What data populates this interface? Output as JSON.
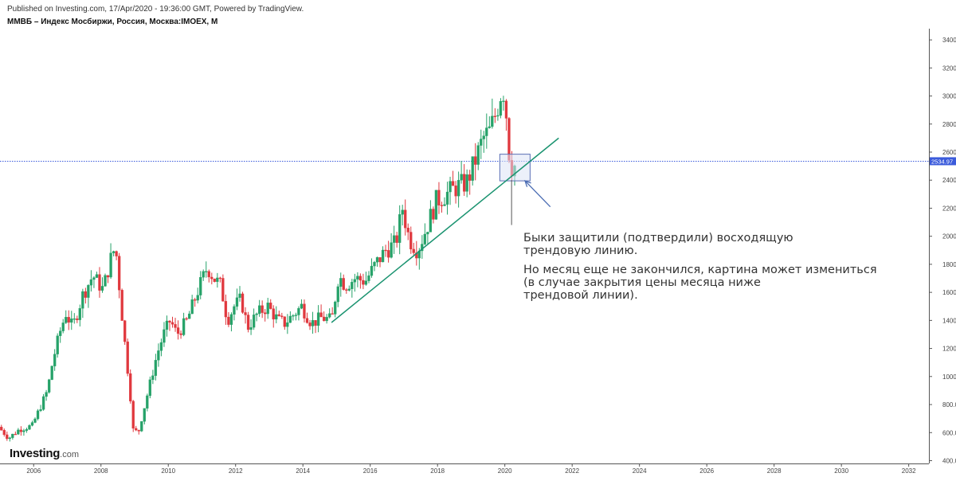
{
  "header": {
    "published": "Published on Investing.com, 17/Apr/2020 - 19:36:00 GMT, Powered by TradingView.",
    "title": "ММВБ – Индекс Мосбиржи, Россия, Москва:IMOEX, M"
  },
  "annotation": {
    "line1": "Быки защитили (подтвердили) восходящую",
    "line2": "трендовую линию.",
    "line3": "Но месяц еще не закончился, картина может измениться",
    "line4": "(в случае закрытия цены месяца ниже",
    "line5": "трендовой линии)."
  },
  "logo": {
    "brand": "Investing",
    "suffix": ".com"
  },
  "colors": {
    "up": "#26a269",
    "down": "#e0383e",
    "trend": "#1a9370",
    "price_line": "#3b5bdb",
    "box_fill": "#dce4f5",
    "box_border": "#5a6fb5"
  },
  "chart_data": {
    "type": "candlestick",
    "title": "ММВБ – Индекс Мосбиржи, Россия, Москва:IMOEX, M",
    "interval": "monthly",
    "x_ticks": [
      "2006",
      "2008",
      "2010",
      "2012",
      "2014",
      "2016",
      "2018",
      "2020",
      "2022",
      "2024",
      "2026",
      "2028",
      "2030",
      "2032"
    ],
    "y_ticks": [
      "400.00",
      "600.00",
      "800.00",
      "1000.00",
      "1200.00",
      "1400.00",
      "1600.00",
      "1800.00",
      "2000.00",
      "2200.00",
      "2400.00",
      "2600.00",
      "2800.00",
      "3000.00",
      "3200.00",
      "3400.00"
    ],
    "ylim": [
      380,
      3480
    ],
    "xlim": [
      2005.0,
      2032.6
    ],
    "current_price": "2534.97",
    "current_value": 2534.97,
    "close_path": [
      [
        2005.0,
        640
      ],
      [
        2005.3,
        560
      ],
      [
        2005.6,
        620
      ],
      [
        2006.0,
        650
      ],
      [
        2006.2,
        760
      ],
      [
        2006.45,
        900
      ],
      [
        2006.6,
        1100
      ],
      [
        2006.8,
        1300
      ],
      [
        2007.0,
        1450
      ],
      [
        2007.2,
        1350
      ],
      [
        2007.5,
        1580
      ],
      [
        2007.8,
        1720
      ],
      [
        2008.1,
        1620
      ],
      [
        2008.4,
        1900
      ],
      [
        2008.5,
        1860
      ],
      [
        2008.7,
        1350
      ],
      [
        2008.9,
        900
      ],
      [
        2009.0,
        620
      ],
      [
        2009.15,
        600
      ],
      [
        2009.3,
        750
      ],
      [
        2009.5,
        950
      ],
      [
        2009.7,
        1150
      ],
      [
        2009.9,
        1300
      ],
      [
        2010.1,
        1400
      ],
      [
        2010.3,
        1300
      ],
      [
        2010.6,
        1400
      ],
      [
        2010.9,
        1600
      ],
      [
        2011.2,
        1780
      ],
      [
        2011.4,
        1700
      ],
      [
        2011.6,
        1650
      ],
      [
        2011.8,
        1400
      ],
      [
        2012.0,
        1500
      ],
      [
        2012.2,
        1550
      ],
      [
        2012.4,
        1350
      ],
      [
        2012.7,
        1450
      ],
      [
        2013.0,
        1500
      ],
      [
        2013.3,
        1400
      ],
      [
        2013.5,
        1380
      ],
      [
        2013.8,
        1450
      ],
      [
        2014.0,
        1500
      ],
      [
        2014.3,
        1380
      ],
      [
        2014.6,
        1420
      ],
      [
        2014.9,
        1400
      ],
      [
        2015.1,
        1720
      ],
      [
        2015.3,
        1650
      ],
      [
        2015.6,
        1700
      ],
      [
        2015.9,
        1680
      ],
      [
        2016.2,
        1800
      ],
      [
        2016.5,
        1900
      ],
      [
        2016.8,
        1950
      ],
      [
        2017.0,
        2200
      ],
      [
        2017.2,
        1980
      ],
      [
        2017.45,
        1900
      ],
      [
        2017.7,
        2050
      ],
      [
        2018.0,
        2250
      ],
      [
        2018.3,
        2300
      ],
      [
        2018.6,
        2350
      ],
      [
        2018.9,
        2380
      ],
      [
        2019.1,
        2500
      ],
      [
        2019.4,
        2700
      ],
      [
        2019.6,
        2750
      ],
      [
        2019.8,
        2900
      ],
      [
        2019.95,
        3050
      ],
      [
        2020.05,
        3020
      ],
      [
        2020.1,
        2800
      ],
      [
        2020.2,
        2500
      ]
    ],
    "trendline": {
      "from": {
        "x": 2014.85,
        "y": 1385
      },
      "to": {
        "x": 2021.6,
        "y": 2700
      }
    },
    "highlight_box": {
      "x": [
        2019.85,
        2020.75
      ],
      "y": [
        2395,
        2585
      ]
    },
    "arrow": {
      "from": {
        "x": 2021.35,
        "y": 2210
      },
      "to": {
        "x": 2020.6,
        "y": 2395
      }
    },
    "wick_marker": {
      "x": 2020.2,
      "y_low": 2080,
      "y_high": 2400
    }
  }
}
